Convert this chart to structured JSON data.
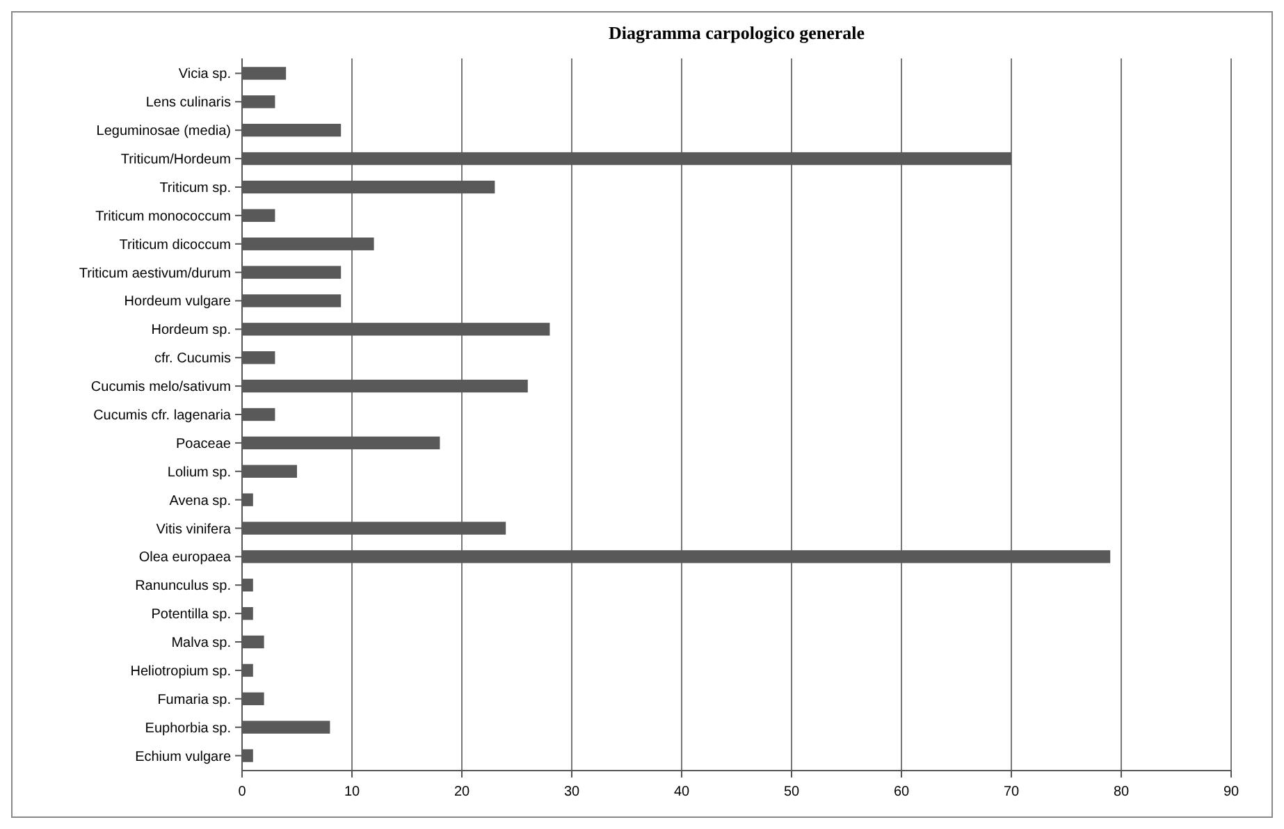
{
  "chart_data": {
    "type": "bar",
    "orientation": "horizontal",
    "title": "Diagramma carpologico generale",
    "categories": [
      "Vicia sp.",
      "Lens culinaris",
      "Leguminosae (media)",
      "Triticum/Hordeum",
      "Triticum sp.",
      "Triticum monococcum",
      "Triticum dicoccum",
      "Triticum aestivum/durum",
      "Hordeum vulgare",
      "Hordeum sp.",
      "cfr. Cucumis",
      "Cucumis melo/sativum",
      "Cucumis cfr. lagenaria",
      "Poaceae",
      "Lolium sp.",
      "Avena sp.",
      "Vitis vinifera",
      "Olea europaea",
      "Ranunculus sp.",
      "Potentilla sp.",
      "Malva sp.",
      "Heliotropium sp.",
      "Fumaria sp.",
      "Euphorbia sp.",
      "Echium vulgare"
    ],
    "values": [
      4,
      3,
      9,
      70,
      23,
      3,
      12,
      9,
      9,
      28,
      3,
      26,
      3,
      18,
      5,
      1,
      24,
      79,
      1,
      1,
      2,
      1,
      2,
      8,
      1
    ],
    "color": "#595959",
    "xlim": [
      0,
      90
    ],
    "xticks": [
      0,
      10,
      20,
      30,
      40,
      50,
      60,
      70,
      80,
      90
    ],
    "grid": "x"
  }
}
